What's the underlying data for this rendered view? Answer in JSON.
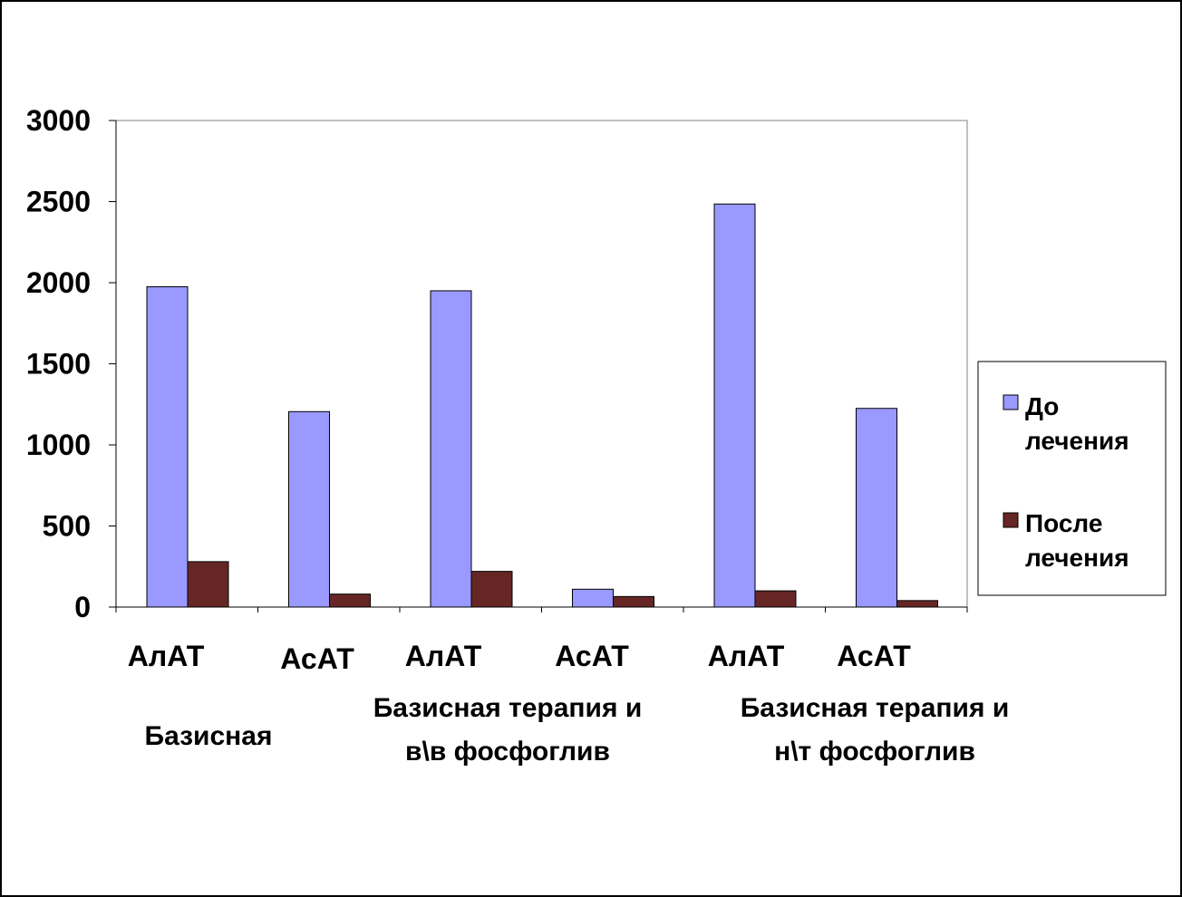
{
  "chart_data": {
    "type": "bar",
    "categories": [
      "АлАТ",
      "АсАТ",
      "АлАТ",
      "АсАТ",
      "АлАТ",
      "АсАТ"
    ],
    "groups": [
      {
        "lines": [
          "Базисная"
        ]
      },
      {
        "lines": [
          "Базисная терапия  и",
          "в\\в фосфоглив"
        ]
      },
      {
        "lines": [
          "Базисная терапия  и",
          "н\\т фосфоглив"
        ]
      }
    ],
    "series": [
      {
        "name": "До лечения",
        "legend_lines": [
          "До",
          "лечения"
        ],
        "color": "#9999ff",
        "values": [
          1975,
          1205,
          1950,
          110,
          2485,
          1225
        ]
      },
      {
        "name": "После лечения",
        "legend_lines": [
          "После",
          "лечения"
        ],
        "color": "#662626",
        "values": [
          280,
          80,
          220,
          65,
          100,
          40
        ]
      }
    ],
    "ylim": [
      0,
      3000
    ],
    "yticks": [
      "0",
      "500",
      "1000",
      "1500",
      "2000",
      "2500",
      "3000"
    ],
    "grid": false,
    "legend_position": "right"
  }
}
